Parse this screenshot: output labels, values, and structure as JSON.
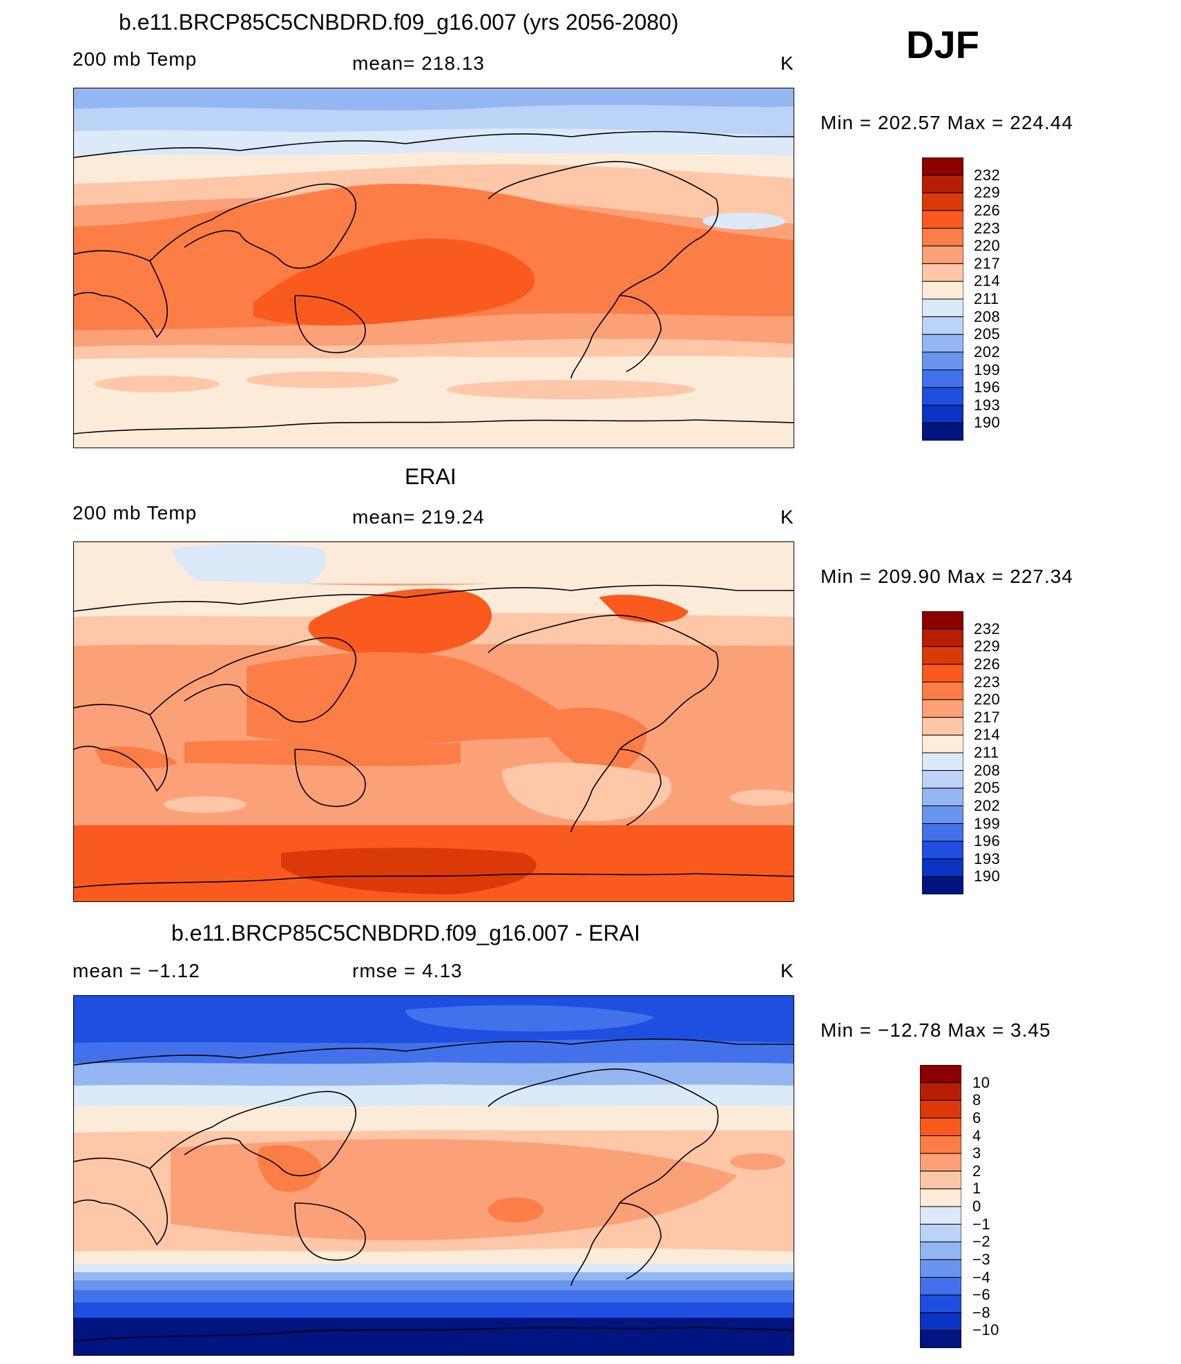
{
  "season": "DJF",
  "panels": [
    {
      "id": "model",
      "title": "b.e11.BRCP85C5CNBDRD.f09_g16.007 (yrs 2056-2080)",
      "left_label": "200 mb Temp",
      "center_label": "mean=  218.13",
      "units": "K",
      "minmax": "Min  =  202.57  Max  =  224.44",
      "legend_labels": [
        "232",
        "229",
        "226",
        "223",
        "220",
        "217",
        "214",
        "211",
        "208",
        "205",
        "202",
        "199",
        "196",
        "193",
        "190"
      ],
      "legend_colors": [
        "#8b0000",
        "#b81d06",
        "#dc3908",
        "#fa5a1d",
        "#fc7d45",
        "#fca078",
        "#fdc7a8",
        "#feebd8",
        "#dbe9f8",
        "#bbd3f6",
        "#94b7f3",
        "#6a95ef",
        "#4271ea",
        "#1f4fe0",
        "#0934c4",
        "#00157f"
      ]
    },
    {
      "id": "obs",
      "title": "ERAI",
      "left_label": "200 mb Temp",
      "center_label": "mean=  219.24",
      "units": "K",
      "minmax": "Min  =  209.90  Max  =  227.34",
      "legend_labels": [
        "232",
        "229",
        "226",
        "223",
        "220",
        "217",
        "214",
        "211",
        "208",
        "205",
        "202",
        "199",
        "196",
        "193",
        "190"
      ],
      "legend_colors": [
        "#8b0000",
        "#b81d06",
        "#dc3908",
        "#fa5a1d",
        "#fc7d45",
        "#fca078",
        "#fdc7a8",
        "#feebd8",
        "#dbe9f8",
        "#bbd3f6",
        "#94b7f3",
        "#6a95ef",
        "#4271ea",
        "#1f4fe0",
        "#0934c4",
        "#00157f"
      ]
    },
    {
      "id": "diff",
      "title": "b.e11.BRCP85C5CNBDRD.f09_g16.007 - ERAI",
      "left_label": "mean  =    −1.12",
      "center_label": "rmse  =     4.13",
      "units": "K",
      "minmax": "Min  =  −12.78  Max  =     3.45",
      "legend_labels": [
        "10",
        "8",
        "6",
        "4",
        "3",
        "2",
        "1",
        "0",
        "−1",
        "−2",
        "−3",
        "−4",
        "−6",
        "−8",
        "−10"
      ],
      "legend_colors": [
        "#8b0000",
        "#b81d06",
        "#dc3908",
        "#fa5a1d",
        "#fc7d45",
        "#fca078",
        "#fdc7a8",
        "#feebd8",
        "#dbe9f8",
        "#bbd3f6",
        "#94b7f3",
        "#6a95ef",
        "#4271ea",
        "#1f4fe0",
        "#0934c4",
        "#00157f"
      ]
    }
  ]
}
